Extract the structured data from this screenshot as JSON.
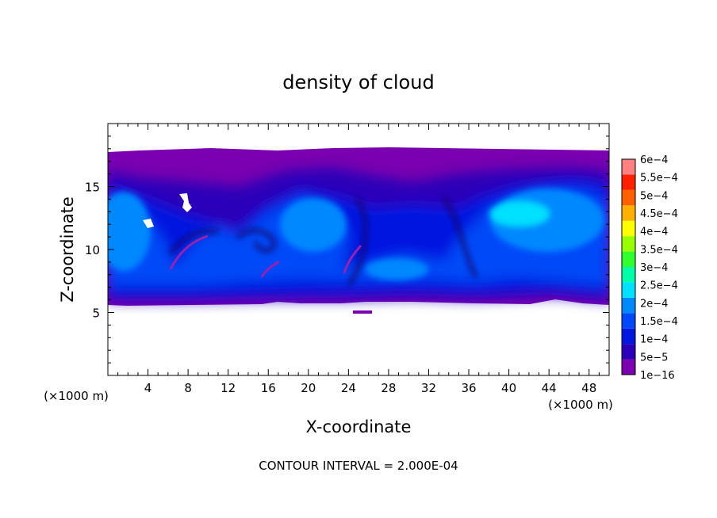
{
  "chart_data": {
    "type": "heatmap",
    "title": "density of cloud",
    "xlabel": "X-coordinate",
    "ylabel": "Z-coordinate",
    "x_unit": "(×1000 m)",
    "z_unit": "(×1000 m)",
    "xlim": [
      0,
      50
    ],
    "ylim": [
      0,
      20
    ],
    "x_ticks": [
      "4",
      "8",
      "12",
      "16",
      "20",
      "24",
      "28",
      "32",
      "36",
      "40",
      "44",
      "48"
    ],
    "y_ticks": [
      "5",
      "10",
      "15"
    ],
    "footer": "CONTOUR INTERVAL = 2.000E-04",
    "colorbar": {
      "labels": [
        "1e−16",
        "5e−5",
        "1e−4",
        "1.5e−4",
        "2e−4",
        "2.5e−4",
        "3e−4",
        "3.5e−4",
        "4e−4",
        "4.5e−4",
        "5e−4",
        "5.5e−4",
        "6e−4"
      ],
      "colors": [
        "#7a00b0",
        "#2a00b8",
        "#0018e0",
        "#0048f8",
        "#0088ff",
        "#00e0ff",
        "#00ffa8",
        "#30ff30",
        "#98ff00",
        "#ffff00",
        "#ffb000",
        "#ff6000",
        "#ff2000",
        "#ff8080"
      ]
    },
    "field": {
      "cloud_base_km": 5.8,
      "cloud_top_km": 17.6
    }
  }
}
